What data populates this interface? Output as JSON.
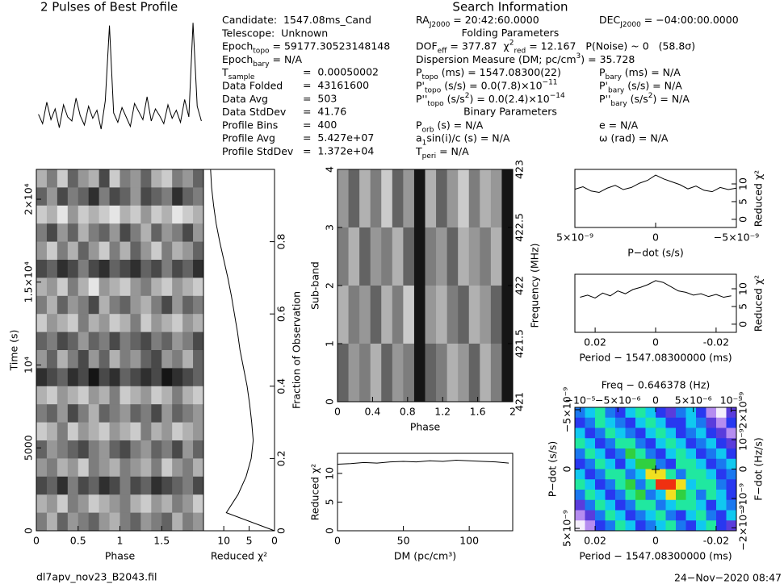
{
  "header": {
    "title": "2 Pulses of Best Profile",
    "search_title": "Search Information"
  },
  "info_left": [
    {
      "label": [
        "Candidate:  1547.08ms_Cand"
      ]
    },
    {
      "label": [
        "Telescope:  Unknown"
      ]
    },
    {
      "label": [
        "Epoch",
        {
          "sub": "topo"
        },
        " = 59177.30523148148"
      ]
    },
    {
      "label": [
        "Epoch",
        {
          "sub": "bary"
        },
        " = N/A"
      ]
    },
    {
      "label": [
        "T",
        {
          "sub": "sample"
        }
      ],
      "value": "=  0.00050002"
    },
    {
      "label": [
        "Data Folded"
      ],
      "value": "=  43161600"
    },
    {
      "label": [
        "Data Avg"
      ],
      "value": "=  503"
    },
    {
      "label": [
        "Data StdDev"
      ],
      "value": "=  41.76"
    },
    {
      "label": [
        "Profile Bins"
      ],
      "value": "=  400"
    },
    {
      "label": [
        "Profile Avg"
      ],
      "value": "=  5.427e+07"
    },
    {
      "label": [
        "Profile StdDev"
      ],
      "value": "=  1.372e+04"
    }
  ],
  "info_right": [
    {
      "left": [
        "RA",
        {
          "sub": "J2000"
        },
        " = 20:42:60.0000"
      ],
      "right": [
        "DEC",
        {
          "sub": "J2000"
        },
        " = −04:00:00.0000"
      ]
    },
    {
      "heading": "Folding Parameters"
    },
    {
      "left": [
        "DOF",
        {
          "sub": "eff"
        },
        " = 377.87  χ",
        {
          "sup": "2"
        },
        {
          "sub": "red"
        },
        " = 12.167   P(Noise) ~ 0   (58.8σ)"
      ]
    },
    {
      "left": [
        "Dispersion Measure (DM; pc/cm",
        {
          "sup": "3"
        },
        ") = 35.728"
      ]
    },
    {
      "left": [
        "P",
        {
          "sub": "topo"
        },
        " (ms) = 1547.08300(22)"
      ],
      "right": [
        "P",
        {
          "sub": "bary"
        },
        " (ms) = N/A"
      ]
    },
    {
      "left": [
        "P'",
        {
          "sub": "topo"
        },
        " (s/s) = 0.0(7.8)×10",
        {
          "sup": "−11"
        }
      ],
      "right": [
        "P'",
        {
          "sub": "bary"
        },
        " (s/s) = N/A"
      ]
    },
    {
      "left": [
        "P''",
        {
          "sub": "topo"
        },
        " (s/s",
        {
          "sup": "2"
        },
        ") = 0.0(2.4)×10",
        {
          "sup": "−14"
        }
      ],
      "right": [
        "P''",
        {
          "sub": "bary"
        },
        " (s/s",
        {
          "sup": "2"
        },
        ") = N/A"
      ]
    },
    {
      "heading": "Binary Parameters"
    },
    {
      "left": [
        "P",
        {
          "sub": "orb"
        },
        " (s) = N/A"
      ],
      "right": [
        "e = N/A"
      ]
    },
    {
      "left": [
        "a",
        {
          "sub": "1"
        },
        "sin(i)/c (s) = N/A"
      ],
      "right": [
        "ω (rad) = N/A"
      ]
    },
    {
      "left": [
        "T",
        {
          "sub": "peri"
        },
        " = N/A"
      ]
    }
  ],
  "footer": {
    "file": "dl7apv_nov23_B2043.fil",
    "date": "24−Nov−2020 08:47"
  },
  "chart_data": [
    {
      "type": "line",
      "ylim": [
        0,
        1.05
      ],
      "values": [
        0.32,
        0.25,
        0.41,
        0.28,
        0.36,
        0.22,
        0.39,
        0.3,
        0.27,
        0.44,
        0.31,
        0.24,
        0.38,
        0.29,
        0.35,
        0.21,
        0.42,
        0.98,
        0.33,
        0.26,
        0.37,
        0.3,
        0.23,
        0.4,
        0.34,
        0.28,
        0.45,
        0.27,
        0.36,
        0.31,
        0.25,
        0.39,
        0.29,
        0.35,
        0.26,
        0.43,
        0.3,
        1.0,
        0.38,
        0.27
      ]
    },
    {
      "type": "heatmap",
      "xlabel": "Phase",
      "ylabel": "Time (s)",
      "xlim": [
        0,
        2
      ],
      "xticks": [
        0,
        0.5,
        1,
        1.5
      ],
      "ylim": [
        0,
        21800
      ],
      "yticks": [
        0,
        5000,
        {
          "value": 10000,
          "label": "10⁴"
        },
        {
          "value": 15000,
          "label": "1.5×10⁴"
        },
        {
          "value": 20000,
          "label": "2×10⁴"
        }
      ],
      "values": [
        [
          3,
          5,
          2,
          6,
          4,
          3,
          7,
          2,
          5,
          4,
          6,
          3,
          2,
          5,
          4,
          6
        ],
        [
          6,
          4,
          7,
          5,
          6,
          8,
          5,
          7,
          6,
          4,
          7,
          6,
          5,
          8,
          6,
          5
        ],
        [
          2,
          3,
          1,
          4,
          2,
          3,
          2,
          1,
          3,
          2,
          4,
          2,
          3,
          1,
          2,
          3
        ],
        [
          5,
          7,
          4,
          6,
          3,
          5,
          6,
          4,
          7,
          5,
          3,
          6,
          4,
          5,
          7,
          4
        ],
        [
          4,
          2,
          5,
          3,
          6,
          4,
          2,
          5,
          3,
          6,
          4,
          2,
          5,
          3,
          4,
          6
        ],
        [
          7,
          6,
          8,
          7,
          5,
          7,
          8,
          6,
          7,
          8,
          6,
          7,
          5,
          7,
          6,
          8
        ],
        [
          3,
          4,
          2,
          5,
          3,
          1,
          4,
          3,
          2,
          4,
          5,
          3,
          2,
          4,
          3,
          2
        ],
        [
          5,
          3,
          6,
          4,
          5,
          7,
          3,
          5,
          6,
          4,
          3,
          5,
          7,
          4,
          6,
          5
        ],
        [
          2,
          4,
          3,
          2,
          5,
          3,
          4,
          2,
          3,
          5,
          2,
          4,
          3,
          2,
          4,
          3
        ],
        [
          6,
          5,
          7,
          6,
          4,
          6,
          5,
          7,
          5,
          6,
          7,
          5,
          6,
          4,
          5,
          7
        ],
        [
          4,
          6,
          3,
          5,
          7,
          4,
          6,
          3,
          5,
          4,
          6,
          7,
          4,
          5,
          3,
          6
        ],
        [
          8,
          7,
          6,
          8,
          7,
          9,
          7,
          8,
          6,
          7,
          8,
          7,
          9,
          8,
          7,
          6
        ],
        [
          3,
          2,
          4,
          3,
          2,
          4,
          3,
          5,
          2,
          3,
          4,
          2,
          3,
          5,
          3,
          2
        ],
        [
          5,
          6,
          4,
          7,
          5,
          3,
          6,
          5,
          4,
          6,
          5,
          7,
          4,
          6,
          5,
          4
        ],
        [
          2,
          3,
          5,
          2,
          4,
          3,
          2,
          4,
          3,
          2,
          5,
          3,
          4,
          2,
          3,
          4
        ],
        [
          6,
          4,
          5,
          6,
          7,
          5,
          4,
          6,
          7,
          5,
          4,
          6,
          5,
          7,
          4,
          6
        ],
        [
          4,
          5,
          3,
          4,
          2,
          5,
          4,
          3,
          5,
          4,
          3,
          5,
          2,
          4,
          5,
          3
        ],
        [
          7,
          6,
          8,
          5,
          7,
          6,
          8,
          7,
          5,
          7,
          6,
          8,
          7,
          6,
          5,
          7
        ],
        [
          3,
          4,
          2,
          5,
          4,
          2,
          3,
          4,
          5,
          3,
          2,
          4,
          3,
          5,
          4,
          2
        ],
        [
          5,
          3,
          6,
          4,
          5,
          6,
          4,
          3,
          5,
          6,
          4,
          5,
          6,
          3,
          5,
          4
        ]
      ]
    },
    {
      "type": "line",
      "xlabel": "Reduced χ²",
      "y2label": "Fraction of Observation",
      "xlim": [
        14,
        0
      ],
      "xticks": [
        10,
        5,
        0
      ],
      "y2lim": [
        0,
        1
      ],
      "y2ticks": [
        0,
        0.2,
        0.4,
        0.6,
        0.8
      ],
      "fraction": [
        0,
        0.05,
        0.1,
        0.15,
        0.2,
        0.25,
        0.3,
        0.35,
        0.4,
        0.45,
        0.5,
        0.55,
        0.6,
        0.65,
        0.7,
        0.75,
        0.8,
        0.85,
        0.9,
        0.95,
        1
      ],
      "values": [
        0,
        9.5,
        7.2,
        5.6,
        4.6,
        4.2,
        4.5,
        4.9,
        5.4,
        6.1,
        6.8,
        7.3,
        7.9,
        8.5,
        9.2,
        10.0,
        10.8,
        11.5,
        12.0,
        12.4,
        12.6
      ]
    },
    {
      "type": "heatmap",
      "xlabel": "Phase",
      "ylabel": "Sub-band",
      "y2label": "Frequency (MHz)",
      "xlim": [
        0,
        2
      ],
      "xticks": [
        0,
        0.4,
        0.8,
        1.2,
        1.6,
        2
      ],
      "ylim": [
        0,
        4
      ],
      "yticks": [
        0,
        1,
        2,
        3,
        4
      ],
      "y2lim": [
        421,
        423
      ],
      "y2ticks": [
        421,
        421.5,
        422,
        422.5,
        423
      ],
      "values": [
        [
          4,
          6,
          3,
          5,
          2,
          6,
          4,
          9,
          3,
          6,
          4,
          2,
          5,
          3,
          4,
          9
        ],
        [
          5,
          3,
          6,
          4,
          5,
          3,
          6,
          9,
          5,
          4,
          6,
          3,
          4,
          5,
          3,
          9
        ],
        [
          3,
          5,
          4,
          6,
          3,
          5,
          2,
          9,
          4,
          3,
          5,
          6,
          3,
          4,
          6,
          9
        ],
        [
          6,
          4,
          5,
          3,
          6,
          4,
          5,
          9,
          6,
          5,
          3,
          4,
          6,
          3,
          5,
          9
        ]
      ]
    },
    {
      "type": "line",
      "xlabel": "DM (pc/cm³)",
      "ylabel": "Reduced χ²",
      "xlim": [
        0,
        133
      ],
      "xticks": [
        0,
        50,
        100
      ],
      "ylim": [
        0,
        13.5
      ],
      "yticks": [
        0,
        5,
        10
      ],
      "x": [
        0,
        10,
        20,
        30,
        40,
        50,
        60,
        70,
        80,
        90,
        100,
        110,
        120,
        130
      ],
      "values": [
        11.6,
        11.7,
        11.9,
        11.8,
        12.0,
        12.1,
        12.0,
        12.2,
        12.1,
        12.3,
        12.2,
        12.1,
        12.0,
        11.8
      ]
    },
    {
      "type": "line",
      "xlabel": "P−dot (s/s)",
      "y2label": "Reduced χ²",
      "xlim": [
        5e-09,
        -5e-09
      ],
      "xticks": [
        {
          "value": 5e-09,
          "label": "5×10⁻⁹"
        },
        0,
        {
          "value": -5e-09,
          "label": "−5×10⁻⁹"
        }
      ],
      "y2lim": [
        -2.3,
        14.1
      ],
      "y2ticks": [
        0,
        5,
        10
      ],
      "x": [
        5e-09,
        4.5e-09,
        4e-09,
        3.5e-09,
        3e-09,
        2.5e-09,
        2e-09,
        1.5e-09,
        1e-09,
        5e-10,
        0,
        -5e-10,
        -1e-09,
        -1.5e-09,
        -2e-09,
        -2.5e-09,
        -3e-09,
        -3.5e-09,
        -4e-09,
        -4.5e-09,
        -5e-09
      ],
      "values": [
        8.5,
        9.2,
        8.0,
        7.6,
        8.8,
        9.6,
        8.4,
        9.0,
        10.2,
        11.0,
        12.5,
        11.4,
        10.6,
        9.8,
        8.6,
        9.4,
        8.2,
        7.8,
        9.0,
        8.4,
        8.8
      ]
    },
    {
      "type": "line",
      "xlabel": "Period − 1547.08300000 (ms)",
      "y2label": "Reduced χ²",
      "xlim": [
        0.0267,
        -0.0267
      ],
      "xticks": [
        0.02,
        0,
        -0.02
      ],
      "y2lim": [
        -2.3,
        14.1
      ],
      "y2ticks": [
        0,
        5,
        10
      ],
      "x": [
        0.025,
        0.0225,
        0.02,
        0.0175,
        0.015,
        0.0125,
        0.01,
        0.0075,
        0.005,
        0.0025,
        0,
        -0.0025,
        -0.005,
        -0.0075,
        -0.01,
        -0.0125,
        -0.015,
        -0.0175,
        -0.02,
        -0.0225,
        -0.025
      ],
      "values": [
        7.6,
        8.2,
        7.4,
        8.8,
        8.0,
        9.4,
        8.6,
        9.8,
        10.4,
        11.2,
        12.3,
        11.8,
        10.6,
        9.4,
        9.0,
        8.2,
        8.6,
        7.8,
        8.4,
        7.6,
        8.0
      ]
    },
    {
      "type": "heatmap",
      "xlabel": "Period − 1547.08300000 (ms)",
      "x2label": "Freq − 0.646378 (Hz)",
      "ylabel": "P−dot (s/s)",
      "y2label": "F−dot (Hz/s)",
      "xlim": [
        0.0267,
        -0.0267
      ],
      "xticks": [
        0.02,
        0,
        -0.02
      ],
      "x2lim": [
        -1.07e-05,
        1.07e-05
      ],
      "x2ticks": [
        {
          "value": -1e-05,
          "label": "−10⁻⁵"
        },
        {
          "value": -5e-06,
          "label": "−5×10⁻⁶"
        },
        0,
        {
          "value": 5e-06,
          "label": "5×10⁻⁶"
        },
        {
          "value": 1e-05,
          "label": "10⁻⁵"
        }
      ],
      "ylim": [
        5.2e-09,
        -5.2e-09
      ],
      "yticks": [
        {
          "value": -5e-09,
          "label": "−5×10⁻⁹"
        },
        0,
        {
          "value": 5e-09,
          "label": "5×10⁻⁹"
        }
      ],
      "y2lim": [
        -2.1e-09,
        2.1e-09
      ],
      "y2ticks": [
        {
          "value": 2e-09,
          "label": "2×10⁻⁹"
        },
        {
          "value": 1e-09,
          "label": "10⁻⁹"
        },
        0,
        {
          "value": -1e-09,
          "label": "−10⁻⁹"
        },
        {
          "value": -2e-09,
          "label": "−2×10⁻⁹"
        }
      ],
      "colors": [
        "#f4eefc",
        "#b58cf0",
        "#5a3cdc",
        "#2838f0",
        "#1a78f0",
        "#10c8f0",
        "#20e8a0",
        "#30d040",
        "#f0e020",
        "#f03010"
      ],
      "values": [
        [
          4,
          5,
          6,
          4,
          3,
          5,
          6,
          5,
          3,
          2,
          4,
          5,
          3,
          1,
          0,
          2
        ],
        [
          3,
          4,
          6,
          5,
          4,
          3,
          5,
          6,
          5,
          3,
          3,
          5,
          4,
          2,
          1,
          3
        ],
        [
          5,
          3,
          4,
          6,
          5,
          4,
          3,
          5,
          6,
          5,
          3,
          4,
          5,
          3,
          2,
          1
        ],
        [
          6,
          5,
          3,
          4,
          6,
          6,
          4,
          3,
          5,
          6,
          5,
          3,
          4,
          5,
          3,
          2
        ],
        [
          4,
          6,
          5,
          3,
          4,
          7,
          6,
          4,
          3,
          5,
          6,
          5,
          3,
          4,
          5,
          3
        ],
        [
          3,
          4,
          6,
          5,
          3,
          5,
          7,
          7,
          4,
          3,
          6,
          6,
          5,
          3,
          4,
          5
        ],
        [
          5,
          3,
          4,
          6,
          6,
          4,
          5,
          8,
          8,
          6,
          4,
          6,
          6,
          5,
          3,
          4
        ],
        [
          6,
          5,
          3,
          4,
          6,
          7,
          4,
          6,
          9,
          9,
          8,
          5,
          6,
          6,
          4,
          3
        ],
        [
          4,
          6,
          5,
          3,
          4,
          6,
          7,
          4,
          5,
          8,
          7,
          6,
          4,
          6,
          5,
          3
        ],
        [
          2,
          4,
          6,
          5,
          3,
          4,
          6,
          6,
          4,
          5,
          6,
          6,
          5,
          3,
          5,
          4
        ],
        [
          1,
          2,
          4,
          6,
          5,
          3,
          4,
          5,
          6,
          4,
          3,
          5,
          6,
          4,
          3,
          5
        ],
        [
          0,
          1,
          3,
          4,
          6,
          5,
          3,
          4,
          5,
          6,
          4,
          3,
          5,
          6,
          3,
          2
        ]
      ]
    }
  ]
}
